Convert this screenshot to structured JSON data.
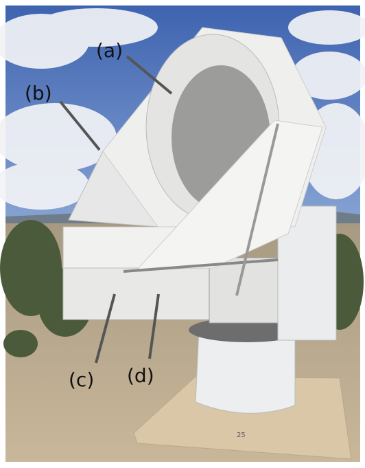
{
  "labels": [
    "(a)",
    "(b)",
    "(c)",
    "(d)"
  ],
  "pad_number": "25"
}
